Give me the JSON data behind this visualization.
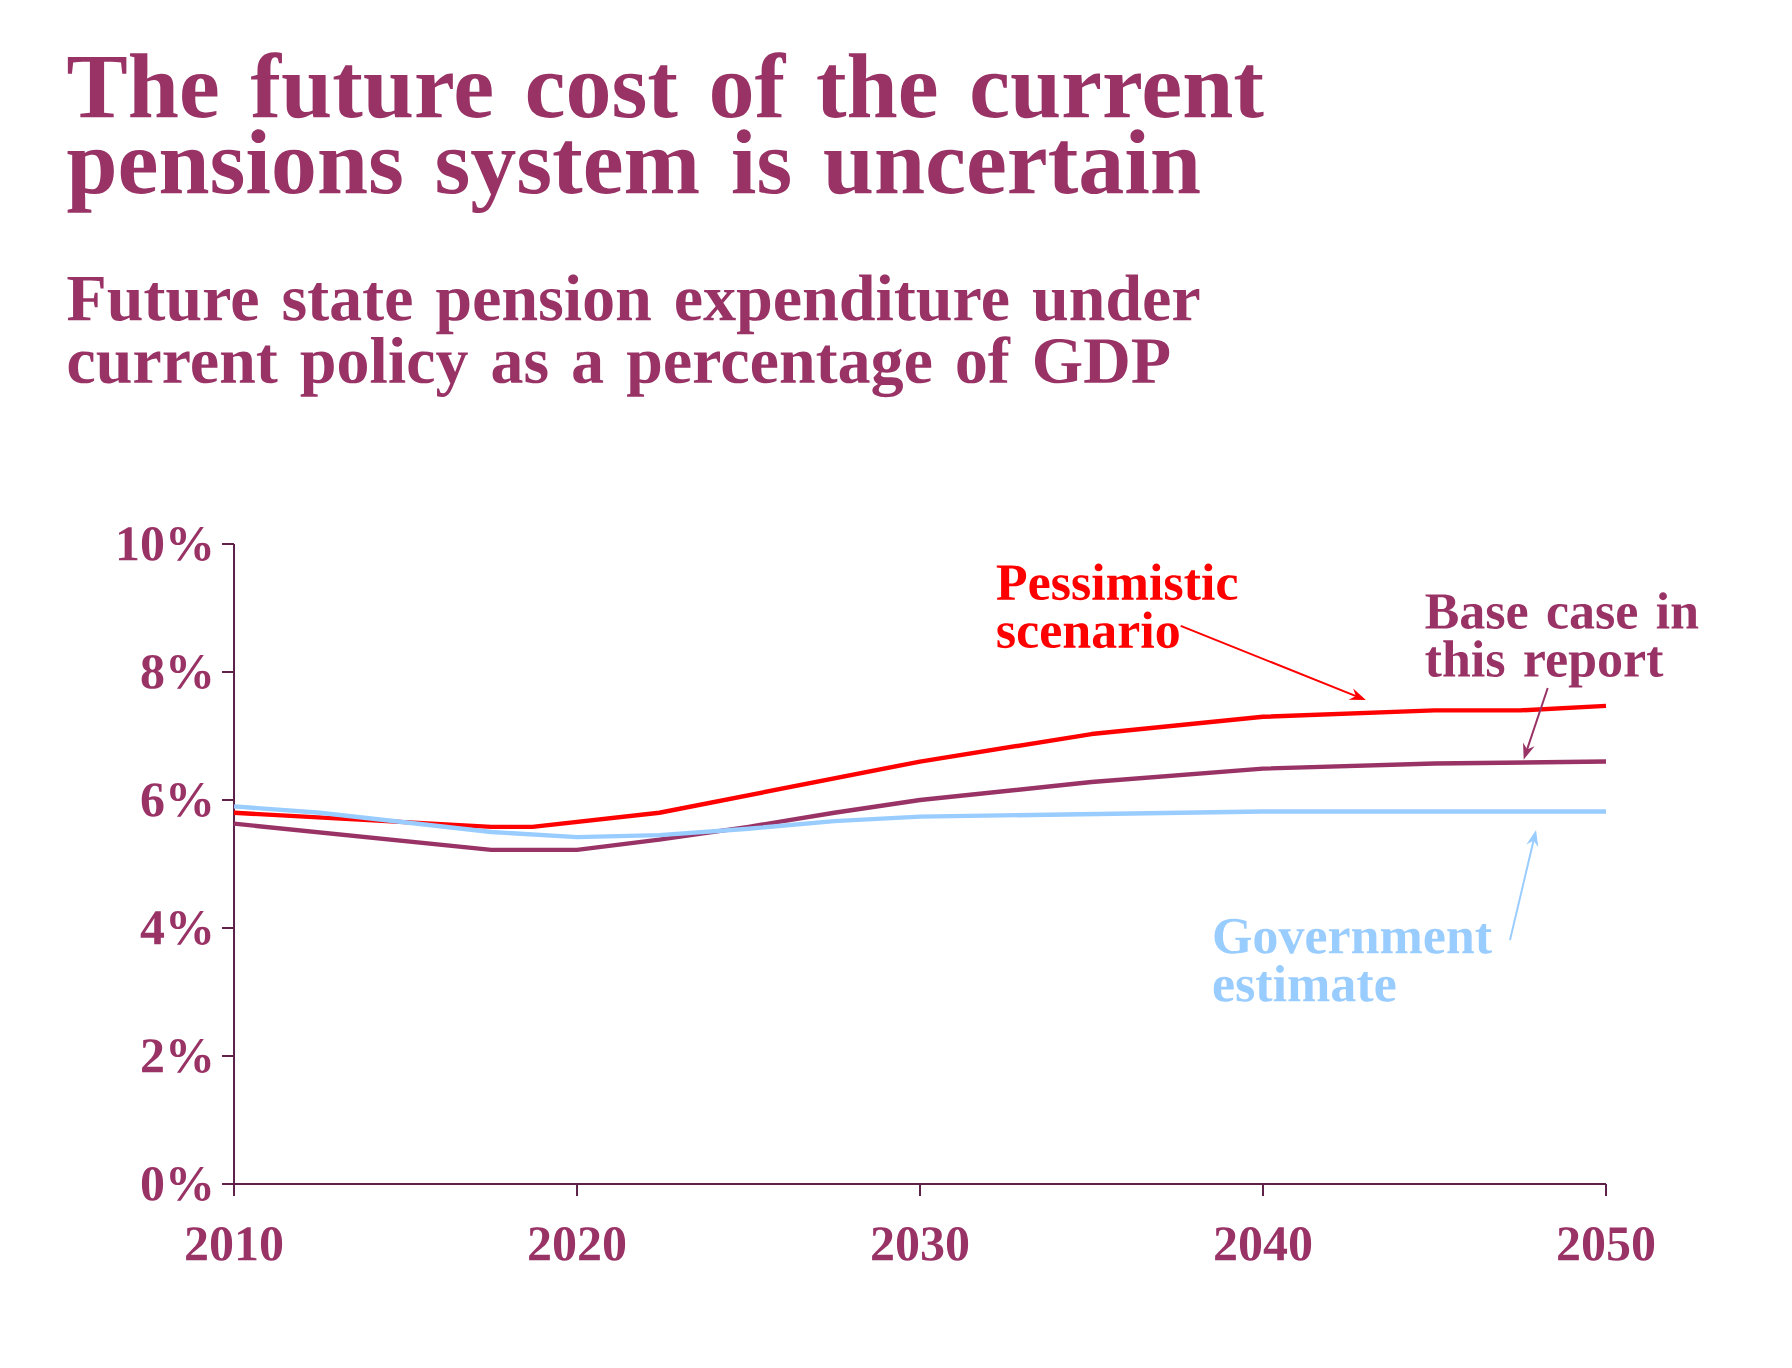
{
  "chart_data": {
    "type": "line",
    "title": "The future cost of the current pensions system is uncertain",
    "subtitle": "Future state pension expenditure under current policy as a percentage of GDP",
    "xlim": [
      2010,
      2050
    ],
    "xticks": [
      2010,
      2020,
      2030,
      2040,
      2050
    ],
    "ylim": [
      0,
      10
    ],
    "yticks": [
      {
        "value": 0,
        "label": "0%"
      },
      {
        "value": 2,
        "label": "2%"
      },
      {
        "value": 4,
        "label": "4%"
      },
      {
        "value": 6,
        "label": "6%"
      },
      {
        "value": 8,
        "label": "8%"
      },
      {
        "value": 10,
        "label": "10%"
      }
    ],
    "grid": false,
    "marker": "none",
    "line_style": "solid",
    "series": [
      {
        "name": "Pessimistic scenario",
        "color": "#ff0000",
        "x": [
          2010,
          2017.5,
          2018.7,
          2022.4,
          2030,
          2035,
          2040,
          2045,
          2047.5,
          2050
        ],
        "values": [
          5.8,
          5.58,
          5.58,
          5.8,
          6.6,
          7.03,
          7.3,
          7.4,
          7.4,
          7.47
        ]
      },
      {
        "name": "Base case in this report",
        "color": "#993366",
        "x": [
          2010,
          2017.5,
          2020,
          2022.4,
          2025,
          2027.5,
          2030,
          2035,
          2040,
          2045,
          2050
        ],
        "values": [
          5.63,
          5.22,
          5.22,
          5.38,
          5.58,
          5.8,
          6.0,
          6.28,
          6.49,
          6.57,
          6.6
        ]
      },
      {
        "name": "Government estimate",
        "color": "#99ccff",
        "x": [
          2010,
          2012.5,
          2017.5,
          2020,
          2022.4,
          2025,
          2027.5,
          2030,
          2040,
          2050
        ],
        "values": [
          5.9,
          5.8,
          5.5,
          5.42,
          5.45,
          5.55,
          5.67,
          5.74,
          5.82,
          5.82
        ]
      }
    ]
  }
}
